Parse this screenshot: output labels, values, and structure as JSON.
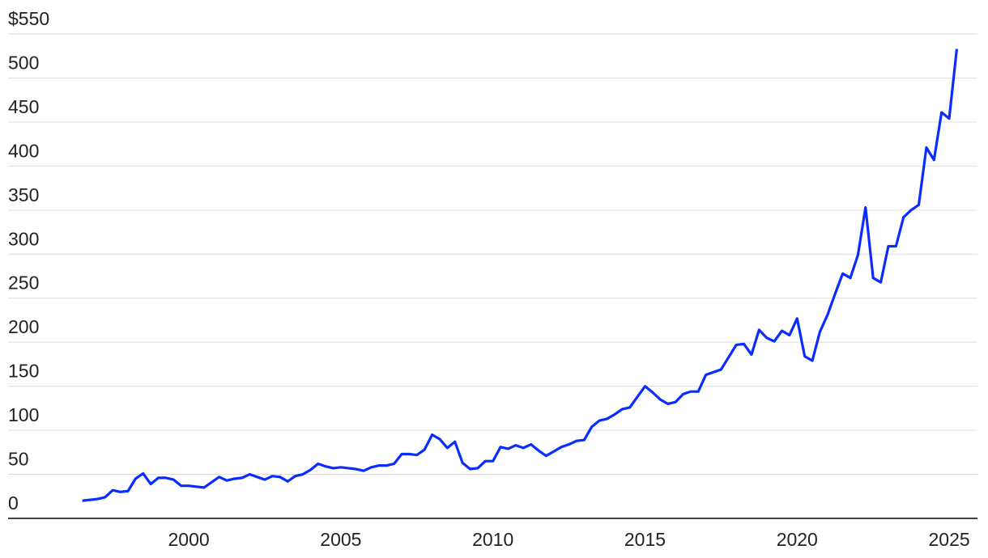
{
  "chart_data": {
    "type": "line",
    "x": [
      1996.5,
      1996.75,
      1997,
      1997.25,
      1997.5,
      1997.75,
      1998,
      1998.25,
      1998.5,
      1998.75,
      1999,
      1999.25,
      1999.5,
      1999.75,
      2000,
      2000.25,
      2000.5,
      2000.75,
      2001,
      2001.25,
      2001.5,
      2001.75,
      2002,
      2002.25,
      2002.5,
      2002.75,
      2003,
      2003.25,
      2003.5,
      2003.75,
      2004,
      2004.25,
      2004.5,
      2004.75,
      2005,
      2005.25,
      2005.5,
      2005.75,
      2006,
      2006.25,
      2006.5,
      2006.75,
      2007,
      2007.25,
      2007.5,
      2007.75,
      2008,
      2008.25,
      2008.5,
      2008.75,
      2009,
      2009.25,
      2009.5,
      2009.75,
      2010,
      2010.25,
      2010.5,
      2010.75,
      2011,
      2011.25,
      2011.5,
      2011.75,
      2012,
      2012.25,
      2012.5,
      2012.75,
      2013,
      2013.25,
      2013.5,
      2013.75,
      2014,
      2014.25,
      2014.5,
      2014.75,
      2015,
      2015.25,
      2015.5,
      2015.75,
      2016,
      2016.25,
      2016.5,
      2016.75,
      2017,
      2017.25,
      2017.5,
      2017.75,
      2018,
      2018.25,
      2018.5,
      2018.75,
      2019,
      2019.25,
      2019.5,
      2019.75,
      2020,
      2020.25,
      2020.5,
      2020.75,
      2021,
      2021.25,
      2021.5,
      2021.75,
      2022,
      2022.25,
      2022.5,
      2022.75,
      2023,
      2023.25,
      2023.5,
      2023.75,
      2024,
      2024.25,
      2024.5,
      2024.75,
      2025,
      2025.25
    ],
    "series": [
      {
        "color": "#0a2cff",
        "values": [
          20,
          21,
          22,
          24,
          32,
          30,
          31,
          45,
          51,
          39,
          46,
          46,
          44,
          37,
          37,
          36,
          35,
          41,
          47,
          43,
          45,
          46,
          50,
          47,
          44,
          48,
          47,
          42,
          48,
          50,
          55,
          62,
          59,
          57,
          58,
          57,
          56,
          54,
          58,
          60,
          60,
          62,
          73,
          73,
          72,
          78,
          95,
          90,
          80,
          87,
          63,
          56,
          57,
          65,
          65,
          81,
          79,
          83,
          80,
          84,
          77,
          71,
          76,
          81,
          84,
          88,
          89,
          104,
          111,
          113,
          118,
          124,
          126,
          138,
          150,
          143,
          135,
          130,
          132,
          141,
          144,
          144,
          163,
          166,
          169,
          183,
          197,
          198,
          186,
          214,
          205,
          201,
          213,
          208,
          227,
          184,
          179,
          212,
          231,
          255,
          278,
          273,
          299,
          353,
          273,
          268,
          309,
          309,
          342,
          350,
          356,
          421,
          407,
          461,
          454,
          533
        ]
      }
    ],
    "xlim": [
      1994.06,
      2025.93
    ],
    "xticks": [
      2000,
      2005,
      2010,
      2015,
      2020,
      2025
    ],
    "ylim": [
      0,
      550
    ],
    "yticks": [
      0,
      50,
      100,
      150,
      200,
      250,
      300,
      350,
      400,
      450,
      500,
      {
        "value": 550,
        "label": "$550"
      }
    ],
    "grid": true
  }
}
